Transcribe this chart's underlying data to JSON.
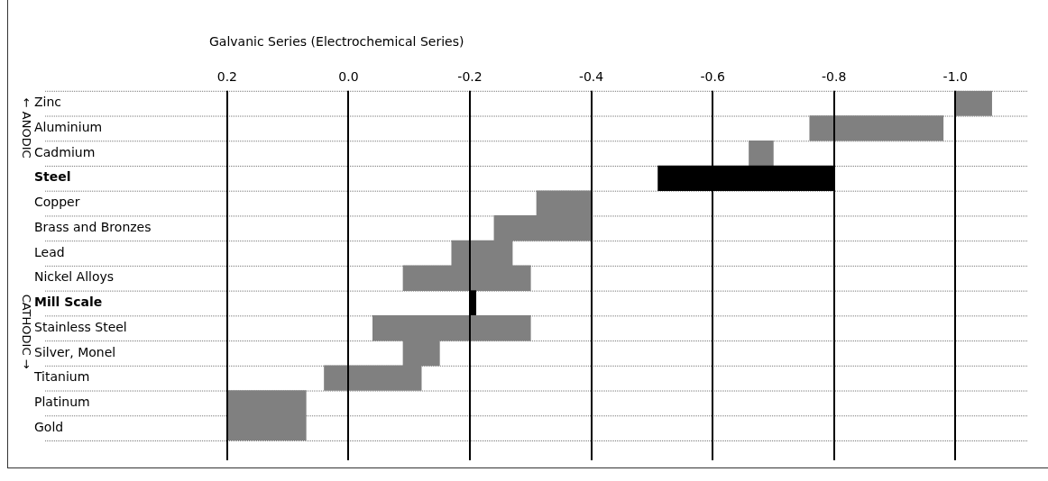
{
  "chart_data": {
    "type": "bar",
    "orientation": "horizontal",
    "title": "Galvanic Series (Electrochemical Series)",
    "categories": [
      "Zinc",
      "Aluminium",
      "Cadmium",
      "Steel",
      "Copper",
      "Brass and Bronzes",
      "Lead",
      "Nickel Alloys",
      "Mill Scale",
      "Stainless Steel",
      "Silver, Monel",
      "Titanium",
      "Platinum",
      "Gold"
    ],
    "base": [
      -1.0,
      -0.76,
      -0.66,
      -0.51,
      -0.31,
      -0.24,
      -0.17,
      -0.09,
      -0.2,
      -0.04,
      -0.09,
      0.04,
      0.2,
      0.2
    ],
    "values": [
      -0.06,
      -0.22,
      -0.04,
      -0.29,
      -0.09,
      -0.16,
      -0.1,
      -0.21,
      -0.01,
      -0.26,
      -0.06,
      -0.16,
      -0.13,
      -0.13
    ],
    "color": "#808080",
    "colors": [
      "#808080",
      "#808080",
      "#808080",
      "#000000",
      "#808080",
      "#808080",
      "#808080",
      "#808080",
      "#000000",
      "#808080",
      "#808080",
      "#808080",
      "#808080",
      "#808080"
    ],
    "xlim": [
      0.5,
      -1.12
    ],
    "xticks": [
      {
        "value": 0.2,
        "label": "0.2"
      },
      {
        "value": 0,
        "label": "0.0"
      },
      {
        "value": -0.2,
        "label": "-0.2"
      },
      {
        "value": -0.4,
        "label": "-0.4"
      },
      {
        "value": -0.6,
        "label": "-0.6"
      },
      {
        "value": -0.8,
        "label": "-0.8"
      },
      {
        "value": -1.0,
        "label": "-1.0"
      }
    ],
    "grid": true,
    "annotations": [
      "← ANODIC",
      "CATHODIC →"
    ]
  }
}
